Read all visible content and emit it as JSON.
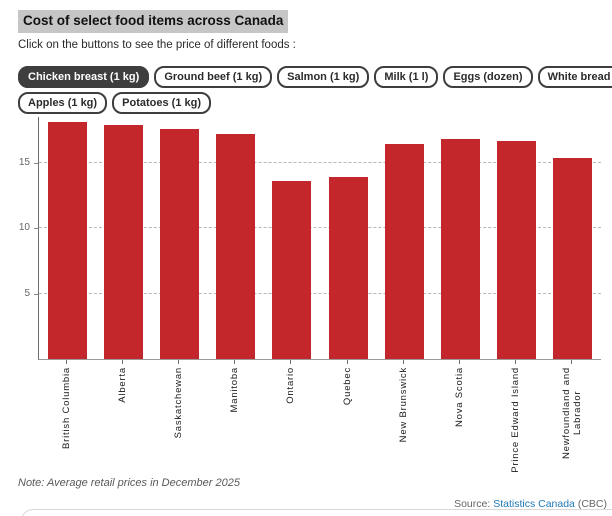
{
  "header": {
    "title": "Cost of select food items across Canada",
    "subtitle": "Click on the buttons to see the price of different foods :"
  },
  "buttons": [
    {
      "label": "Chicken breast (1 kg)",
      "selected": true
    },
    {
      "label": "Ground beef (1 kg)",
      "selected": false
    },
    {
      "label": "Salmon (1 kg)",
      "selected": false
    },
    {
      "label": "Milk (1 l)",
      "selected": false
    },
    {
      "label": "Eggs (dozen)",
      "selected": false
    },
    {
      "label": "White bread (loaf)",
      "selected": false
    },
    {
      "label": "Apples (1 kg)",
      "selected": false
    },
    {
      "label": "Potatoes (1 kg)",
      "selected": false
    }
  ],
  "chart_data": {
    "type": "bar",
    "title": "Cost of select food items across Canada",
    "selected_series": "Chicken breast (1 kg)",
    "categories": [
      "British Columbia",
      "Alberta",
      "Saskatchewan",
      "Manitoba",
      "Ontario",
      "Quebec",
      "New Brunswick",
      "Nova Scotia",
      "Prince Edward Island",
      "Newfoundland and\nLabrador"
    ],
    "values": [
      18.1,
      17.9,
      17.55,
      17.2,
      13.6,
      13.95,
      16.45,
      16.8,
      16.7,
      15.4
    ],
    "xlabel": "",
    "ylabel": "",
    "yticks": [
      5,
      10,
      15
    ],
    "ylim": [
      0,
      18.5
    ],
    "grid": "horizontal-dotted",
    "legend": "none",
    "bar_color": "#c3262b"
  },
  "footer": {
    "note": "Note: Average retail prices in December 2025",
    "source_prefix": "Source:",
    "source_link": "Statistics Canada",
    "source_suffix": "(CBC)"
  },
  "colors": {
    "bar": "#c3262b",
    "title_highlight": "#c6c6c6",
    "button_dark": "#3e3e3e",
    "link_blue": "#2079b6"
  }
}
